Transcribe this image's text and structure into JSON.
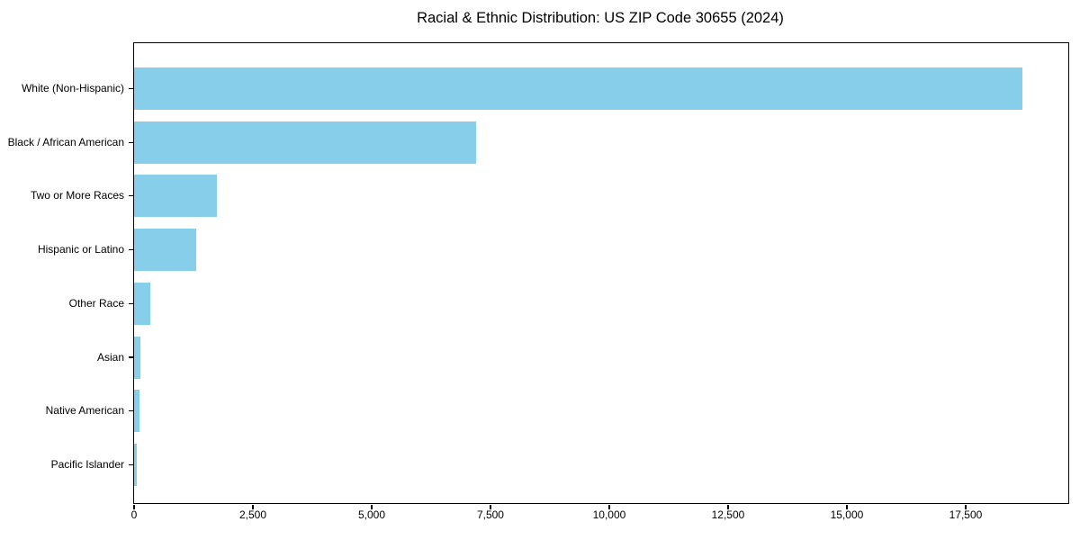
{
  "chart_data": {
    "type": "bar",
    "orientation": "horizontal",
    "title": "Racial & Ethnic Distribution: US ZIP Code 30655 (2024)",
    "categories": [
      "White (Non-Hispanic)",
      "Black / African American",
      "Two or More Races",
      "Hispanic or Latino",
      "Other Race",
      "Asian",
      "Native American",
      "Pacific Islander"
    ],
    "values": [
      18700,
      7200,
      1750,
      1300,
      340,
      130,
      110,
      60
    ],
    "xlabel": "",
    "ylabel": "",
    "xlim": [
      0,
      19660
    ],
    "x_ticks": [
      0,
      2500,
      5000,
      7500,
      10000,
      12500,
      15000,
      17500
    ],
    "x_tick_labels": [
      "0",
      "2,500",
      "5,000",
      "7,500",
      "10,000",
      "12,500",
      "15,000",
      "17,500"
    ],
    "grid": false,
    "legend": null,
    "colors": {
      "bar_fill": "#87CEEB",
      "axis": "#000000",
      "text": "#000000",
      "background": "#FFFFFF"
    }
  }
}
